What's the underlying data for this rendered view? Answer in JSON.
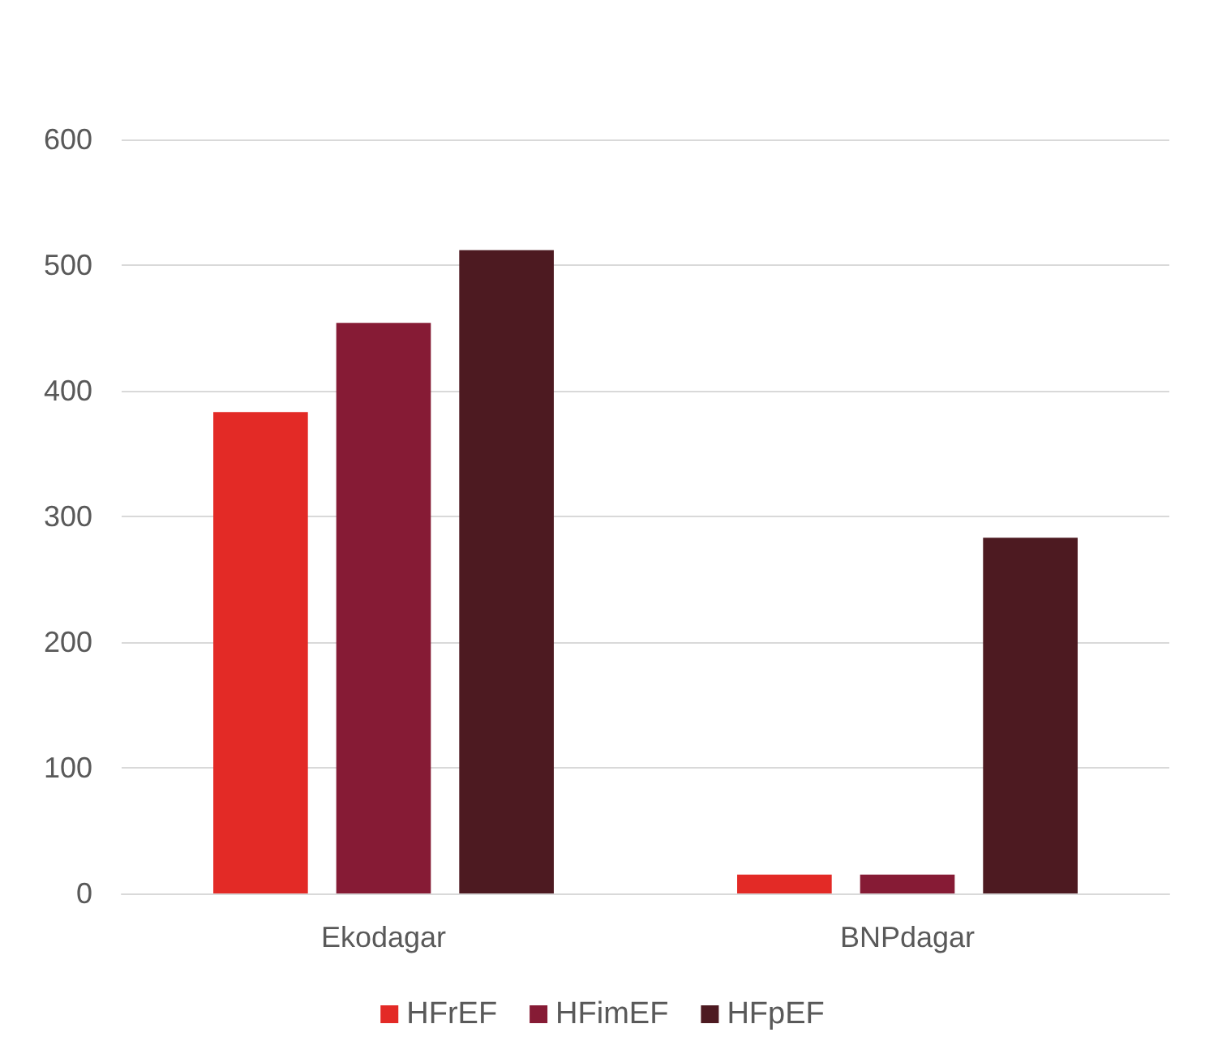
{
  "chart_data": {
    "type": "bar",
    "categories": [
      "Ekodagar",
      "BNPdagar"
    ],
    "series": [
      {
        "name": "HFrEF",
        "color": "#e32a26",
        "values": [
          383,
          15
        ]
      },
      {
        "name": "HFimEF",
        "color": "#861b35",
        "values": [
          454,
          15
        ]
      },
      {
        "name": "HFpEF",
        "color": "#4d1a21",
        "values": [
          512,
          283
        ]
      }
    ],
    "ylim": [
      0,
      600
    ],
    "yticks": [
      0,
      100,
      200,
      300,
      400,
      500,
      600
    ],
    "grid": "y",
    "legend": "bottom"
  }
}
